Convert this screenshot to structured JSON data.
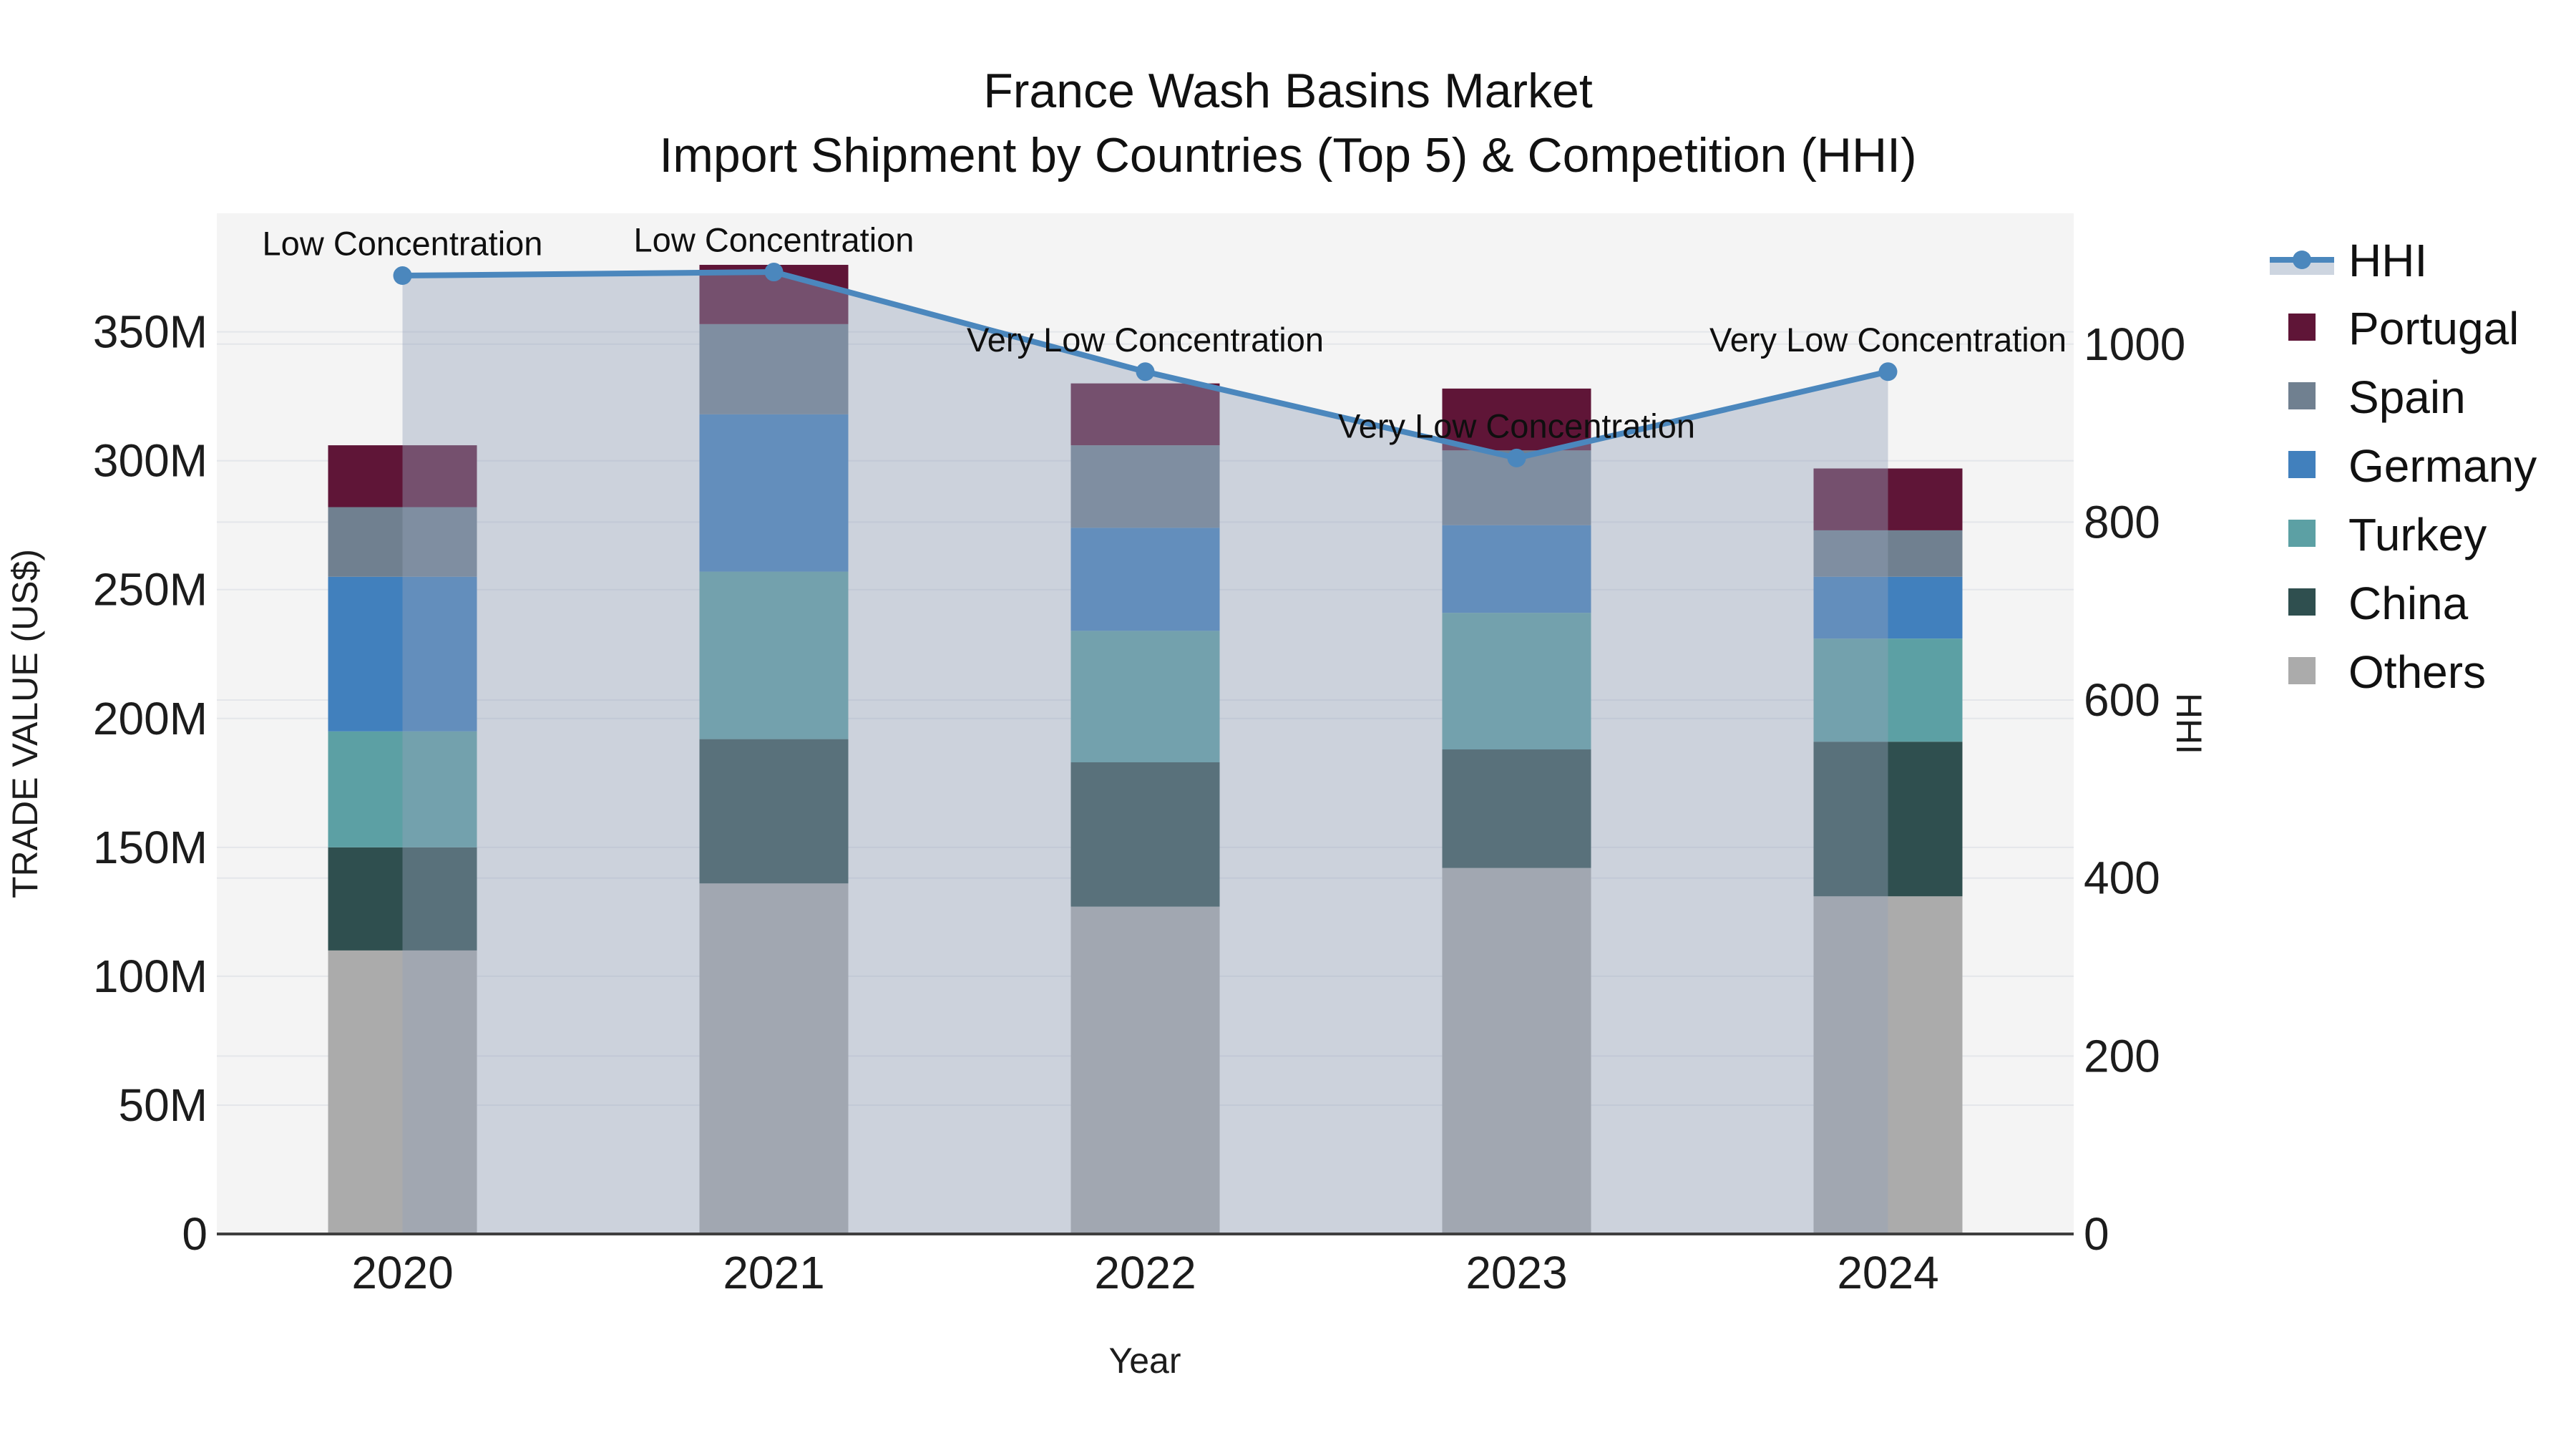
{
  "title": {
    "line1": "France Wash Basins Market",
    "line2": "Import Shipment by Countries (Top 5) & Competition (HHI)"
  },
  "chart_data": {
    "type": "bar+line",
    "title": "France Wash Basins Market — Import Shipment by Countries (Top 5) & Competition (HHI)",
    "xlabel": "Year",
    "ylabel_left": "TRADE VALUE (US$)",
    "ylabel_right": "HHI",
    "categories": [
      "2020",
      "2021",
      "2022",
      "2023",
      "2024"
    ],
    "bar_value_unit": "Million US$",
    "stack_order_note": "series listed bottom-up in the stack; legend shows top-down",
    "series": [
      {
        "name": "Others",
        "color": "#ABABAB",
        "values": [
          110,
          136,
          127,
          142,
          131
        ]
      },
      {
        "name": "China",
        "color": "#2F4F4F",
        "values": [
          40,
          56,
          56,
          46,
          60
        ]
      },
      {
        "name": "Turkey",
        "color": "#5CA0A4",
        "values": [
          45,
          65,
          51,
          53,
          40
        ]
      },
      {
        "name": "Germany",
        "color": "#4180BD",
        "values": [
          60,
          61,
          40,
          34,
          24
        ]
      },
      {
        "name": "Spain",
        "color": "#708090",
        "values": [
          27,
          35,
          32,
          29,
          18
        ]
      },
      {
        "name": "Portugal",
        "color": "#5F1537",
        "values": [
          24,
          23,
          24,
          24,
          24
        ]
      }
    ],
    "bar_totals": [
      306,
      376,
      330,
      328,
      297
    ],
    "hhi": {
      "name": "HHI",
      "line_color": "#4B87BD",
      "area_fill_color": "rgba(148,162,186,0.42)",
      "values": [
        1077,
        1081,
        969,
        872,
        969
      ]
    },
    "annotations": [
      "Low Concentration",
      "Low Concentration",
      "Very Low Concentration",
      "Very Low Concentration",
      "Very Low Concentration"
    ],
    "yticks_left": {
      "values": [
        0,
        50,
        100,
        150,
        200,
        250,
        300,
        350
      ],
      "labels": [
        "0",
        "50M",
        "100M",
        "150M",
        "200M",
        "250M",
        "300M",
        "350M"
      ]
    },
    "yticks_right": {
      "values": [
        0,
        200,
        400,
        600,
        800,
        1000
      ],
      "labels": [
        "0",
        "200",
        "400",
        "600",
        "800",
        "1000"
      ]
    },
    "ylim_left": [
      0,
      396
    ],
    "ylim_right": [
      0,
      1147
    ],
    "grid": true,
    "legend_position": "right",
    "legend_entries": [
      "HHI",
      "Portugal",
      "Spain",
      "Germany",
      "Turkey",
      "China",
      "Others"
    ]
  },
  "colors": {
    "figure_bg": "#ffffff",
    "plot_bg": "#f4f4f4",
    "gridline": "#e4e6ea",
    "axis_line": "#3f3f3f",
    "legend_hhi_fill_sample": "#CDD5E0",
    "text": "#1c1c1c"
  }
}
